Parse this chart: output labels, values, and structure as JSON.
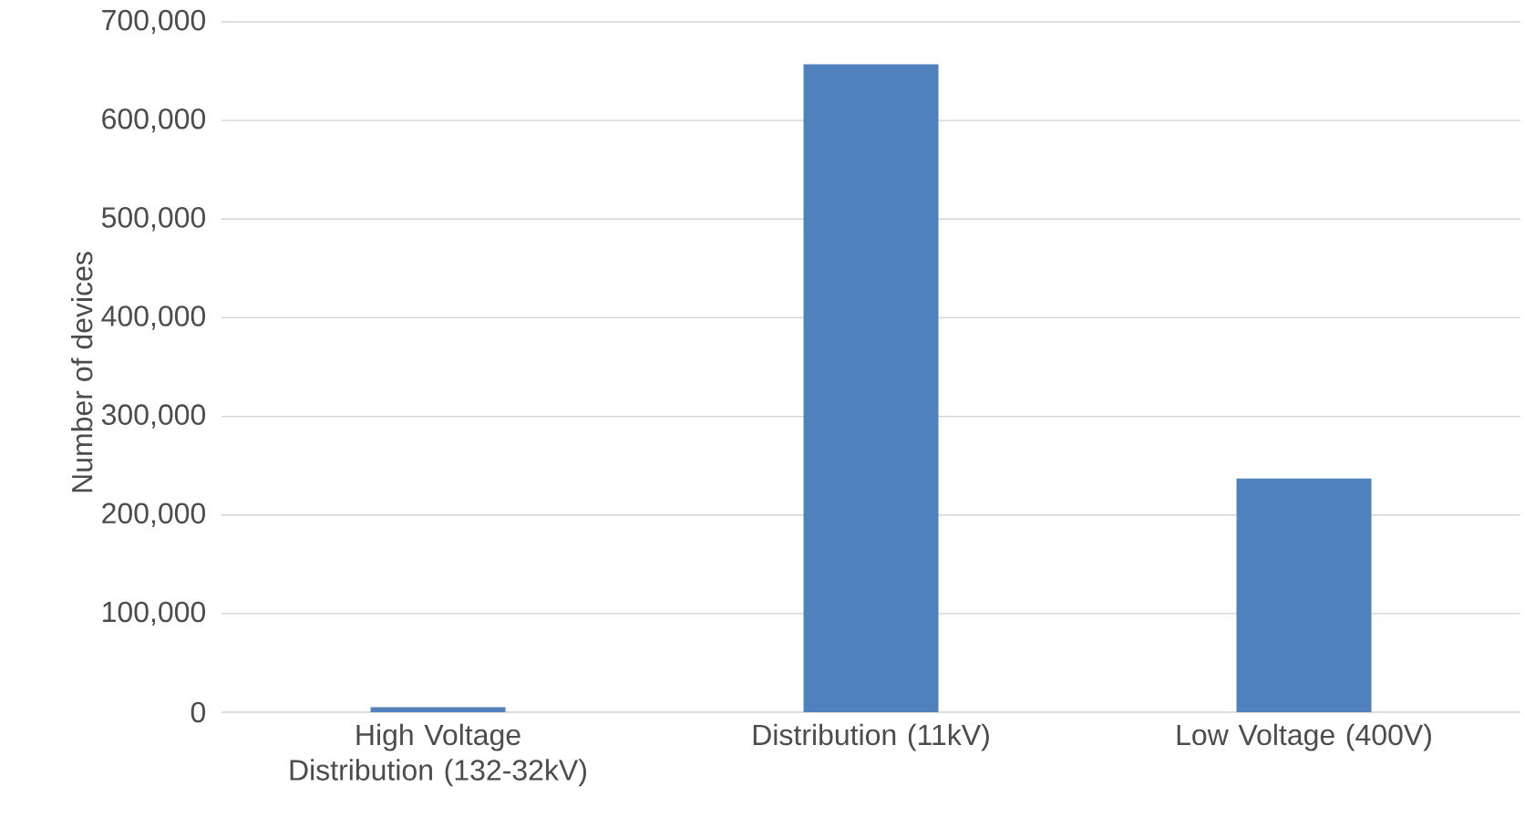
{
  "chart_data": {
    "type": "bar",
    "ylabel": "Number of devices",
    "categories": [
      "High Voltage Distribution (132-32kV)",
      "Distribution (11kV)",
      "Low Voltage (400V)"
    ],
    "values": [
      5000,
      657000,
      237000
    ],
    "color": "#4f81bd",
    "ylim": [
      0,
      700000
    ],
    "yticks": [
      0,
      {
        "value": 100000,
        "label": "100,000"
      },
      {
        "value": 200000,
        "label": "200,000"
      },
      {
        "value": 300000,
        "label": "300,000"
      },
      {
        "value": 400000,
        "label": "400,000"
      },
      {
        "value": 500000,
        "label": "500,000"
      },
      {
        "value": 600000,
        "label": "600,000"
      },
      {
        "value": 700000,
        "label": "700,000"
      }
    ],
    "grid": "y"
  }
}
